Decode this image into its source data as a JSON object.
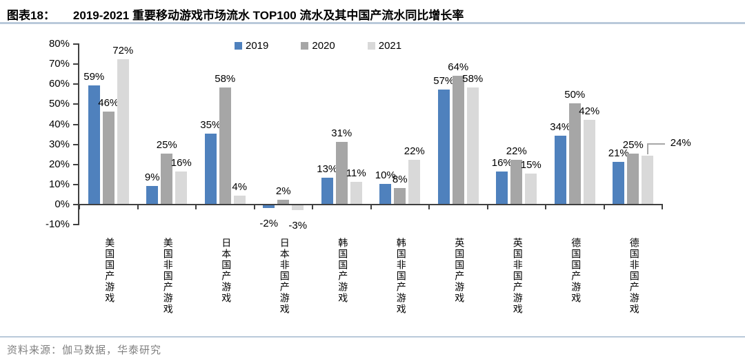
{
  "header": {
    "tag": "图表18：",
    "title": "2019-2021 重要移动游戏市场流水 TOP100 流水及其中国产流水同比增长率"
  },
  "source_note": "资料来源：伽马数据，华泰研究",
  "colors": {
    "series_2019": "#4F81BD",
    "series_2020": "#A6A6A6",
    "series_2021": "#D9D9D9",
    "axis": "#404040",
    "label_text": "#000000",
    "source_text": "#808080",
    "rule_line": "#B9C9DA",
    "callout_line": "#A6A6A6"
  },
  "chart_data": {
    "type": "bar",
    "title": "2019-2021 重要移动游戏市场流水 TOP100 流水及其中国产流水同比增长率",
    "categories": [
      "美国国产游戏",
      "美国非国产游戏",
      "日本国产游戏",
      "日本非国产游戏",
      "韩国国产游戏",
      "韩国非国产游戏",
      "英国国产游戏",
      "英国非国产游戏",
      "德国国产游戏",
      "德国非国产游戏"
    ],
    "series": [
      {
        "name": "2019",
        "values": [
          59,
          9,
          35,
          -2,
          13,
          10,
          57,
          16,
          34,
          21
        ]
      },
      {
        "name": "2020",
        "values": [
          46,
          25,
          58,
          2,
          31,
          8,
          64,
          22,
          50,
          25
        ]
      },
      {
        "name": "2021",
        "values": [
          72,
          16,
          4,
          -3,
          11,
          22,
          58,
          15,
          42,
          24
        ]
      }
    ],
    "ylim": [
      -10,
      80
    ],
    "ytick_step": 10,
    "ytick_labels": [
      "80%",
      "70%",
      "60%",
      "50%",
      "40%",
      "30%",
      "20%",
      "10%",
      "0%",
      "-10%"
    ],
    "value_suffix": "%",
    "legend_position": "top",
    "grid": false,
    "callouts": [
      {
        "series": "2021",
        "category_index": 9,
        "label": "24%"
      }
    ]
  }
}
